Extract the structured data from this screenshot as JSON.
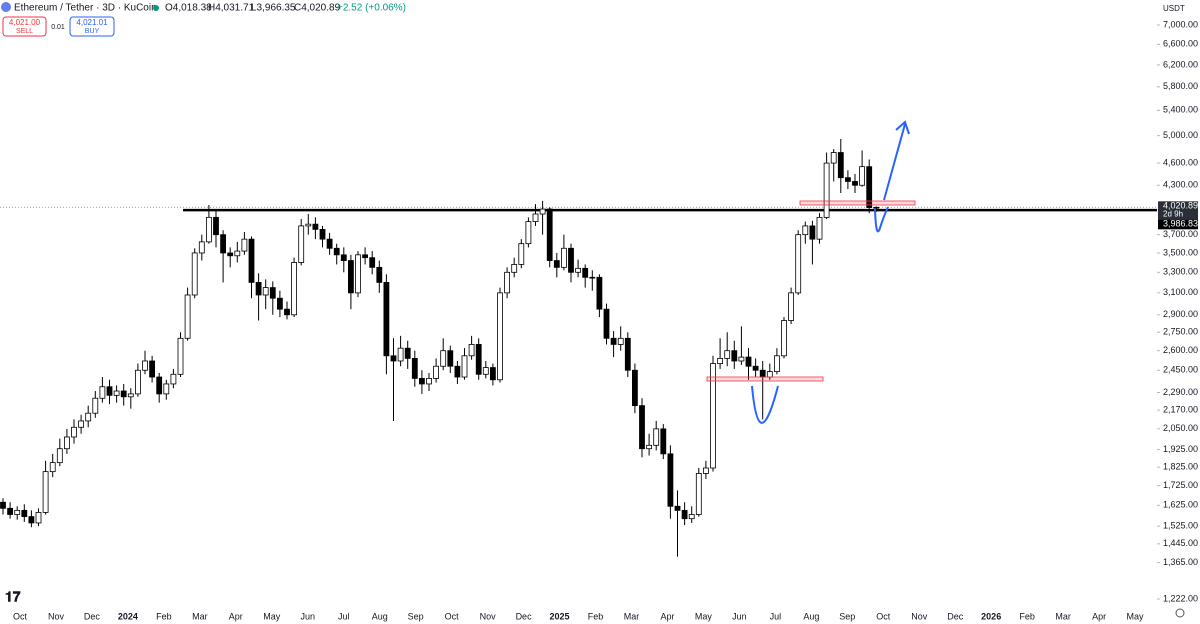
{
  "header": {
    "symbol": "Ethereum / Tether · 3D · KuCoin",
    "ohlc": [
      "O4,018.38",
      "H4,031.71",
      "L3,966.35",
      "C4,020.89"
    ],
    "change": "+2.52 (+0.06%)"
  },
  "trade": {
    "sell_price": "4,021.00",
    "sell": "SELL",
    "spread": "0.01",
    "buy_price": "4,021.01",
    "buy": "BUY"
  },
  "chart_data": {
    "type": "candlestick",
    "unit": "USDT",
    "log": true,
    "ylim": [
      1189,
      7553
    ],
    "yticks": [
      {
        "value": 7000,
        "label": "7,000.00"
      },
      {
        "value": 6600,
        "label": "6,600.00"
      },
      {
        "value": 6200,
        "label": "6,200.00"
      },
      {
        "value": 5800,
        "label": "5,800.00"
      },
      {
        "value": 5400,
        "label": "5,400.00"
      },
      {
        "value": 5000,
        "label": "5,000.00"
      },
      {
        "value": 4600,
        "label": "4,600.00"
      },
      {
        "value": 4300,
        "label": "4,300.00"
      },
      {
        "value": 3700,
        "label": "3,700.00"
      },
      {
        "value": 3500,
        "label": "3,500.00"
      },
      {
        "value": 3300,
        "label": "3,300.00"
      },
      {
        "value": 3100,
        "label": "3,100.00"
      },
      {
        "value": 2900,
        "label": "2,900.00"
      },
      {
        "value": 2750,
        "label": "2,750.00"
      },
      {
        "value": 2600,
        "label": "2,600.00"
      },
      {
        "value": 2450,
        "label": "2,450.00"
      },
      {
        "value": 2290,
        "label": "2,290.00"
      },
      {
        "value": 2170,
        "label": "2,170.00"
      },
      {
        "value": 2050,
        "label": "2,050.00"
      },
      {
        "value": 1925,
        "label": "1,925.00"
      },
      {
        "value": 1825,
        "label": "1,825.00"
      },
      {
        "value": 1725,
        "label": "1,725.00"
      },
      {
        "value": 1625,
        "label": "1,625.00"
      },
      {
        "value": 1525,
        "label": "1,525.00"
      },
      {
        "value": 1445,
        "label": "1,445.00"
      },
      {
        "value": 1365,
        "label": "1,365.00"
      },
      {
        "value": 1222,
        "label": "1,222.00"
      }
    ],
    "x_axis_labels": [
      "Oct",
      "Nov",
      "Dec",
      "2024",
      "Feb",
      "Mar",
      "Apr",
      "May",
      "Jun",
      "Jul",
      "Aug",
      "Sep",
      "Oct",
      "Nov",
      "Dec",
      "2025",
      "Feb",
      "Mar",
      "Apr",
      "May",
      "Jun",
      "Jul",
      "Aug",
      "Sep",
      "Oct",
      "Nov",
      "Dec",
      "2026",
      "Feb",
      "Mar",
      "Apr",
      "May"
    ],
    "last_label": "4,020.89",
    "countdown": "2d 9h",
    "level": {
      "value": 3986.83,
      "label": "3,986.83"
    },
    "up_color": "#ffffff",
    "down_color": "#000000",
    "ohlc": [
      [
        1640,
        1660,
        1580,
        1610
      ],
      [
        1610,
        1640,
        1560,
        1580
      ],
      [
        1580,
        1620,
        1555,
        1600
      ],
      [
        1600,
        1630,
        1545,
        1570
      ],
      [
        1570,
        1600,
        1520,
        1540
      ],
      [
        1540,
        1610,
        1525,
        1590
      ],
      [
        1590,
        1860,
        1580,
        1800
      ],
      [
        1800,
        1900,
        1770,
        1850
      ],
      [
        1850,
        1990,
        1830,
        1930
      ],
      [
        1930,
        2050,
        1900,
        2000
      ],
      [
        2000,
        2110,
        1960,
        2060
      ],
      [
        2060,
        2140,
        2020,
        2100
      ],
      [
        2100,
        2200,
        2060,
        2150
      ],
      [
        2150,
        2300,
        2120,
        2250
      ],
      [
        2250,
        2400,
        2220,
        2330
      ],
      [
        2330,
        2380,
        2210,
        2270
      ],
      [
        2270,
        2340,
        2220,
        2300
      ],
      [
        2300,
        2350,
        2200,
        2260
      ],
      [
        2260,
        2320,
        2180,
        2280
      ],
      [
        2280,
        2500,
        2260,
        2450
      ],
      [
        2450,
        2600,
        2420,
        2520
      ],
      [
        2520,
        2560,
        2360,
        2400
      ],
      [
        2400,
        2430,
        2220,
        2280
      ],
      [
        2280,
        2380,
        2240,
        2350
      ],
      [
        2350,
        2460,
        2320,
        2420
      ],
      [
        2420,
        2750,
        2400,
        2700
      ],
      [
        2700,
        3150,
        2680,
        3080
      ],
      [
        3080,
        3550,
        3050,
        3500
      ],
      [
        3500,
        3700,
        3420,
        3620
      ],
      [
        3620,
        4050,
        3600,
        3900
      ],
      [
        3900,
        4000,
        3560,
        3700
      ],
      [
        3700,
        3750,
        3200,
        3500
      ],
      [
        3500,
        3560,
        3350,
        3470
      ],
      [
        3470,
        3620,
        3400,
        3520
      ],
      [
        3520,
        3730,
        3480,
        3650
      ],
      [
        3650,
        3680,
        3050,
        3200
      ],
      [
        3200,
        3290,
        2850,
        3080
      ],
      [
        3080,
        3230,
        2950,
        3150
      ],
      [
        3150,
        3210,
        2900,
        3050
      ],
      [
        3050,
        3120,
        2880,
        2950
      ],
      [
        2950,
        3020,
        2860,
        2900
      ],
      [
        2900,
        3450,
        2880,
        3400
      ],
      [
        3400,
        3880,
        3370,
        3800
      ],
      [
        3800,
        3940,
        3700,
        3820
      ],
      [
        3820,
        3900,
        3650,
        3760
      ],
      [
        3760,
        3800,
        3560,
        3650
      ],
      [
        3650,
        3720,
        3480,
        3550
      ],
      [
        3550,
        3600,
        3380,
        3480
      ],
      [
        3480,
        3560,
        3300,
        3420
      ],
      [
        3420,
        3480,
        2950,
        3100
      ],
      [
        3100,
        3520,
        3060,
        3480
      ],
      [
        3480,
        3560,
        3380,
        3450
      ],
      [
        3450,
        3520,
        3280,
        3350
      ],
      [
        3350,
        3420,
        3100,
        3200
      ],
      [
        3200,
        3280,
        2420,
        2560
      ],
      [
        2560,
        2700,
        2100,
        2520
      ],
      [
        2520,
        2720,
        2480,
        2620
      ],
      [
        2620,
        2680,
        2460,
        2540
      ],
      [
        2540,
        2600,
        2330,
        2390
      ],
      [
        2390,
        2450,
        2280,
        2350
      ],
      [
        2350,
        2430,
        2300,
        2390
      ],
      [
        2390,
        2540,
        2360,
        2480
      ],
      [
        2480,
        2700,
        2450,
        2600
      ],
      [
        2600,
        2640,
        2430,
        2480
      ],
      [
        2480,
        2520,
        2350,
        2400
      ],
      [
        2400,
        2620,
        2380,
        2560
      ],
      [
        2560,
        2720,
        2530,
        2650
      ],
      [
        2650,
        2700,
        2380,
        2420
      ],
      [
        2420,
        2520,
        2390,
        2470
      ],
      [
        2470,
        2500,
        2340,
        2380
      ],
      [
        2380,
        3150,
        2360,
        3100
      ],
      [
        3100,
        3350,
        3050,
        3300
      ],
      [
        3300,
        3450,
        3250,
        3380
      ],
      [
        3380,
        3650,
        3340,
        3600
      ],
      [
        3600,
        3900,
        3560,
        3850
      ],
      [
        3850,
        4060,
        3800,
        3940
      ],
      [
        3940,
        4100,
        3700,
        4000
      ],
      [
        4000,
        4020,
        3350,
        3420
      ],
      [
        3420,
        3500,
        3250,
        3350
      ],
      [
        3350,
        3700,
        3320,
        3550
      ],
      [
        3550,
        3600,
        3200,
        3300
      ],
      [
        3300,
        3430,
        3250,
        3340
      ],
      [
        3340,
        3380,
        3150,
        3250
      ],
      [
        3250,
        3320,
        3120,
        3250
      ],
      [
        3250,
        3280,
        2880,
        2950
      ],
      [
        2950,
        3000,
        2650,
        2700
      ],
      [
        2700,
        2760,
        2550,
        2650
      ],
      [
        2650,
        2800,
        2600,
        2700
      ],
      [
        2700,
        2750,
        2400,
        2450
      ],
      [
        2450,
        2500,
        2150,
        2200
      ],
      [
        2200,
        2250,
        1880,
        1930
      ],
      [
        1930,
        2020,
        1890,
        1950
      ],
      [
        1950,
        2100,
        1920,
        2050
      ],
      [
        2050,
        2080,
        1870,
        1900
      ],
      [
        1900,
        1950,
        1560,
        1620
      ],
      [
        1620,
        1700,
        1390,
        1600
      ],
      [
        1600,
        1640,
        1530,
        1560
      ],
      [
        1560,
        1620,
        1540,
        1580
      ],
      [
        1580,
        1820,
        1570,
        1790
      ],
      [
        1790,
        1860,
        1760,
        1820
      ],
      [
        1820,
        2560,
        1800,
        2500
      ],
      [
        2500,
        2700,
        2460,
        2540
      ],
      [
        2540,
        2750,
        2480,
        2600
      ],
      [
        2600,
        2680,
        2460,
        2520
      ],
      [
        2520,
        2800,
        2490,
        2550
      ],
      [
        2550,
        2620,
        2380,
        2480
      ],
      [
        2480,
        2540,
        2400,
        2450
      ],
      [
        2450,
        2520,
        2110,
        2400
      ],
      [
        2400,
        2500,
        2380,
        2440
      ],
      [
        2440,
        2620,
        2420,
        2560
      ],
      [
        2560,
        2880,
        2540,
        2850
      ],
      [
        2850,
        3150,
        2820,
        3100
      ],
      [
        3100,
        3750,
        3080,
        3700
      ],
      [
        3700,
        3850,
        3600,
        3800
      ],
      [
        3800,
        3860,
        3380,
        3650
      ],
      [
        3650,
        3950,
        3600,
        3900
      ],
      [
        3900,
        4750,
        3880,
        4600
      ],
      [
        4600,
        4800,
        4350,
        4750
      ],
      [
        4750,
        4950,
        4200,
        4400
      ],
      [
        4400,
        4500,
        4250,
        4350
      ],
      [
        4350,
        4450,
        4200,
        4300
      ],
      [
        4300,
        4780,
        4280,
        4550
      ],
      [
        4550,
        4650,
        3950,
        4018
      ],
      [
        4018.38,
        4031.71,
        3966.35,
        4020.89
      ]
    ]
  }
}
